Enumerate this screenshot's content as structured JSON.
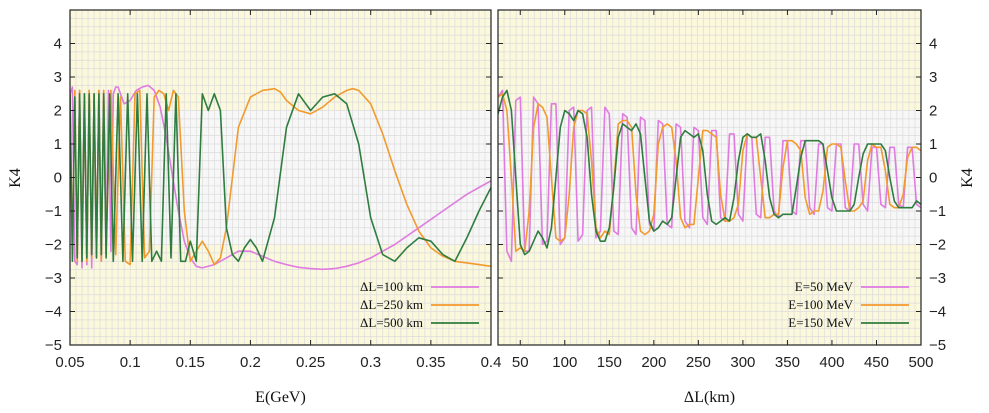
{
  "chart_data": [
    {
      "type": "line",
      "xlabel": "E(GeV)",
      "ylabel": "K4",
      "xlim": [
        0.05,
        0.4
      ],
      "ylim": [
        -5,
        5
      ],
      "xticks": [
        "0.05",
        "0.1",
        "0.15",
        "0.2",
        "0.25",
        "0.3",
        "0.35",
        "0.4"
      ],
      "yticks": [
        "−5",
        "−4",
        "−3",
        "−2",
        "−1",
        "0",
        "1",
        "2",
        "3",
        "4"
      ],
      "grid": true,
      "background_band": [
        -2,
        2
      ],
      "legend_position": "bottom-right",
      "series": [
        {
          "name": "ΔL=100 km",
          "color": "#e07be0",
          "x": [
            0.05,
            0.052,
            0.054,
            0.056,
            0.058,
            0.06,
            0.062,
            0.064,
            0.066,
            0.068,
            0.07,
            0.072,
            0.074,
            0.076,
            0.078,
            0.08,
            0.082,
            0.084,
            0.086,
            0.088,
            0.09,
            0.095,
            0.1,
            0.105,
            0.11,
            0.115,
            0.12,
            0.125,
            0.13,
            0.135,
            0.14,
            0.145,
            0.15,
            0.155,
            0.16,
            0.17,
            0.18,
            0.19,
            0.2,
            0.21,
            0.22,
            0.23,
            0.24,
            0.25,
            0.26,
            0.27,
            0.28,
            0.29,
            0.3,
            0.31,
            0.32,
            0.33,
            0.34,
            0.35,
            0.36,
            0.37,
            0.38,
            0.39,
            0.4
          ],
          "y": [
            2.5,
            2.7,
            -2.5,
            -2.6,
            2.6,
            -2.7,
            2.5,
            -2.6,
            2.4,
            -2.7,
            2.5,
            -2.4,
            2.6,
            -2.5,
            2.6,
            -2.3,
            2.6,
            -2.2,
            2.5,
            2.7,
            2.7,
            2.2,
            2.3,
            2.6,
            2.7,
            2.75,
            2.6,
            2.1,
            1.2,
            0.1,
            -1.0,
            -1.9,
            -2.4,
            -2.65,
            -2.7,
            -2.6,
            -2.4,
            -2.2,
            -2.2,
            -2.35,
            -2.5,
            -2.6,
            -2.68,
            -2.72,
            -2.74,
            -2.72,
            -2.65,
            -2.55,
            -2.4,
            -2.2,
            -2.0,
            -1.75,
            -1.5,
            -1.25,
            -1.0,
            -0.75,
            -0.5,
            -0.3,
            -0.1
          ]
        },
        {
          "name": "ΔL=250 km",
          "color": "#f39a2e",
          "x": [
            0.05,
            0.052,
            0.054,
            0.056,
            0.058,
            0.06,
            0.062,
            0.064,
            0.066,
            0.068,
            0.07,
            0.072,
            0.074,
            0.076,
            0.078,
            0.08,
            0.084,
            0.088,
            0.092,
            0.096,
            0.1,
            0.104,
            0.108,
            0.112,
            0.116,
            0.12,
            0.124,
            0.128,
            0.132,
            0.136,
            0.14,
            0.145,
            0.15,
            0.155,
            0.16,
            0.165,
            0.17,
            0.175,
            0.18,
            0.185,
            0.19,
            0.2,
            0.21,
            0.22,
            0.225,
            0.23,
            0.24,
            0.25,
            0.26,
            0.27,
            0.28,
            0.285,
            0.29,
            0.3,
            0.31,
            0.32,
            0.33,
            0.34,
            0.35,
            0.36,
            0.37,
            0.38,
            0.39,
            0.4
          ],
          "y": [
            2.5,
            -2.4,
            2.6,
            -2.5,
            2.6,
            -2.3,
            2.4,
            -2.5,
            2.6,
            -2.4,
            2.5,
            -2.3,
            2.6,
            -2.5,
            2.6,
            -2.0,
            2.6,
            -2.3,
            2.4,
            -2.5,
            -2.6,
            2.5,
            2.6,
            -2.4,
            -2.2,
            2.4,
            2.6,
            2.5,
            2.0,
            2.6,
            2.4,
            -1.0,
            -2.5,
            -2.2,
            -1.9,
            -2.2,
            -2.6,
            -2.4,
            -1.5,
            0.0,
            1.5,
            2.4,
            2.6,
            2.65,
            2.55,
            2.3,
            2.0,
            1.9,
            2.1,
            2.4,
            2.6,
            2.65,
            2.6,
            2.2,
            1.3,
            0.2,
            -0.8,
            -1.6,
            -2.1,
            -2.35,
            -2.5,
            -2.55,
            -2.6,
            -2.65
          ]
        },
        {
          "name": "ΔL=500 km",
          "color": "#2e7d3f",
          "x": [
            0.05,
            0.052,
            0.054,
            0.056,
            0.058,
            0.06,
            0.062,
            0.064,
            0.066,
            0.068,
            0.07,
            0.072,
            0.074,
            0.076,
            0.078,
            0.08,
            0.083,
            0.086,
            0.09,
            0.094,
            0.098,
            0.102,
            0.106,
            0.11,
            0.114,
            0.118,
            0.122,
            0.126,
            0.13,
            0.134,
            0.138,
            0.142,
            0.146,
            0.15,
            0.155,
            0.16,
            0.165,
            0.17,
            0.175,
            0.18,
            0.185,
            0.19,
            0.195,
            0.2,
            0.205,
            0.21,
            0.22,
            0.23,
            0.24,
            0.25,
            0.26,
            0.27,
            0.28,
            0.29,
            0.3,
            0.31,
            0.32,
            0.33,
            0.34,
            0.35,
            0.36,
            0.37,
            0.38,
            0.39,
            0.4
          ],
          "y": [
            2.5,
            -2.5,
            2.4,
            -2.4,
            2.5,
            -2.5,
            2.5,
            -2.4,
            2.5,
            -2.3,
            2.5,
            -2.4,
            2.5,
            -2.3,
            2.5,
            -2.4,
            2.5,
            -2.5,
            2.5,
            -2.5,
            2.5,
            -2.5,
            2.5,
            -2.5,
            2.5,
            -2.5,
            -2.2,
            -2.5,
            2.5,
            -2.4,
            2.5,
            -2.5,
            -2.5,
            -1.9,
            -2.5,
            2.5,
            2.0,
            2.5,
            2.0,
            -1.5,
            -2.3,
            -2.5,
            -2.1,
            -1.85,
            -2.1,
            -2.5,
            -1.2,
            1.5,
            2.5,
            2.0,
            2.4,
            2.5,
            2.2,
            1.0,
            -1.2,
            -2.3,
            -2.5,
            -2.1,
            -1.8,
            -1.9,
            -2.3,
            -2.5,
            -1.8,
            -1.0,
            -0.3
          ]
        }
      ]
    },
    {
      "type": "line",
      "xlabel": "ΔL(km)",
      "ylabel": "K4",
      "xlim": [
        25,
        500
      ],
      "ylim": [
        -5,
        5
      ],
      "xticks": [
        "50",
        "100",
        "150",
        "200",
        "250",
        "300",
        "350",
        "400",
        "450",
        "500"
      ],
      "yticks": [
        "−5",
        "−4",
        "−3",
        "−2",
        "−1",
        "0",
        "1",
        "2",
        "3",
        "4"
      ],
      "grid": true,
      "background_band": [
        -2,
        2
      ],
      "legend_position": "bottom-right",
      "series": [
        {
          "name": "E=50 MeV",
          "color": "#e07be0",
          "x": [
            25,
            30,
            35,
            40,
            45,
            50,
            55,
            60,
            65,
            70,
            75,
            80,
            85,
            90,
            95,
            100,
            105,
            110,
            115,
            120,
            125,
            130,
            135,
            140,
            145,
            150,
            155,
            160,
            165,
            170,
            175,
            180,
            185,
            190,
            195,
            200,
            205,
            210,
            215,
            220,
            225,
            230,
            235,
            240,
            245,
            250,
            255,
            260,
            265,
            270,
            275,
            280,
            285,
            290,
            295,
            300,
            305,
            310,
            315,
            320,
            325,
            330,
            335,
            340,
            345,
            350,
            355,
            360,
            365,
            370,
            375,
            380,
            385,
            390,
            395,
            400,
            405,
            410,
            415,
            420,
            425,
            430,
            435,
            440,
            445,
            450,
            455,
            460,
            465,
            470,
            475,
            480,
            485,
            490,
            495,
            500
          ],
          "y": [
            2.4,
            2.6,
            -2.2,
            -2.5,
            2.3,
            2.4,
            -2.2,
            -2.2,
            2.4,
            2.2,
            -2.0,
            -1.9,
            2.2,
            2.2,
            -2.0,
            -1.8,
            2.0,
            2.1,
            -1.9,
            -1.7,
            2.0,
            2.1,
            -1.8,
            -1.6,
            2.1,
            1.9,
            -1.6,
            -1.7,
            1.9,
            1.8,
            -1.5,
            -1.7,
            1.8,
            1.7,
            -1.4,
            -1.6,
            1.7,
            1.6,
            -1.4,
            -1.5,
            1.6,
            1.5,
            -1.3,
            -1.5,
            1.5,
            1.4,
            -1.2,
            -1.4,
            1.4,
            1.4,
            -1.2,
            -1.3,
            1.3,
            1.3,
            -1.1,
            -1.3,
            1.3,
            1.2,
            -1.1,
            -1.2,
            1.2,
            1.2,
            -1.0,
            -1.2,
            1.1,
            1.1,
            -1.0,
            -1.1,
            1.1,
            1.1,
            -0.9,
            -1.1,
            1.0,
            1.0,
            -0.9,
            -1.0,
            1.0,
            1.0,
            -0.9,
            -1.0,
            1.0,
            1.0,
            -0.8,
            -1.0,
            0.9,
            0.9,
            -0.8,
            -0.9,
            0.9,
            0.9,
            -0.8,
            -0.9,
            0.9,
            0.9,
            -0.8,
            -0.9
          ]
        },
        {
          "name": "E=100 MeV",
          "color": "#f39a2e",
          "x": [
            25,
            30,
            35,
            40,
            45,
            50,
            55,
            60,
            65,
            70,
            75,
            80,
            85,
            90,
            95,
            100,
            105,
            110,
            115,
            120,
            125,
            130,
            135,
            140,
            145,
            150,
            155,
            160,
            165,
            170,
            175,
            180,
            185,
            190,
            195,
            200,
            205,
            210,
            215,
            220,
            225,
            230,
            235,
            240,
            245,
            250,
            255,
            260,
            265,
            270,
            275,
            280,
            285,
            290,
            295,
            300,
            305,
            310,
            315,
            320,
            325,
            330,
            335,
            340,
            345,
            350,
            355,
            360,
            365,
            370,
            375,
            380,
            385,
            390,
            395,
            400,
            405,
            410,
            415,
            420,
            425,
            430,
            435,
            440,
            445,
            450,
            455,
            460,
            465,
            470,
            475,
            480,
            485,
            490,
            495,
            500
          ],
          "y": [
            2.4,
            2.5,
            2.0,
            0.0,
            -2.2,
            -2.1,
            -2.2,
            -1.0,
            1.5,
            2.2,
            2.1,
            1.8,
            0.0,
            -1.8,
            -1.9,
            -1.8,
            -0.5,
            1.5,
            2.0,
            2.0,
            1.9,
            0.5,
            -1.5,
            -1.8,
            -1.6,
            -1.7,
            -0.2,
            1.6,
            1.7,
            1.7,
            1.5,
            -0.5,
            -1.6,
            -1.7,
            -1.6,
            -1.1,
            1.0,
            1.5,
            1.6,
            1.5,
            0.5,
            -1.2,
            -1.5,
            -1.4,
            -1.4,
            0.0,
            1.4,
            1.4,
            1.3,
            1.2,
            -0.5,
            -1.3,
            -1.3,
            -1.2,
            -0.8,
            0.8,
            1.3,
            1.2,
            1.2,
            0.0,
            -1.2,
            -1.2,
            -1.1,
            -1.1,
            0.3,
            1.1,
            1.1,
            1.0,
            0.8,
            -0.6,
            -1.1,
            -1.0,
            -1.0,
            -0.4,
            0.9,
            1.0,
            1.0,
            0.9,
            -0.1,
            -1.0,
            -1.0,
            -0.9,
            -0.7,
            0.5,
            1.0,
            0.9,
            0.9,
            0.2,
            -0.8,
            -0.9,
            -0.9,
            -0.5,
            0.6,
            0.9,
            0.9,
            0.8
          ]
        },
        {
          "name": "E=150 MeV",
          "color": "#2e7d3f",
          "x": [
            25,
            30,
            35,
            40,
            45,
            50,
            55,
            60,
            65,
            70,
            75,
            80,
            85,
            90,
            95,
            100,
            105,
            110,
            115,
            120,
            125,
            130,
            135,
            140,
            145,
            150,
            155,
            160,
            165,
            170,
            175,
            180,
            185,
            190,
            195,
            200,
            205,
            210,
            215,
            220,
            225,
            230,
            235,
            240,
            245,
            250,
            255,
            260,
            265,
            270,
            275,
            280,
            285,
            290,
            295,
            300,
            305,
            310,
            315,
            320,
            325,
            330,
            335,
            340,
            345,
            350,
            355,
            360,
            365,
            370,
            375,
            380,
            385,
            390,
            395,
            400,
            405,
            410,
            415,
            420,
            425,
            430,
            435,
            440,
            445,
            450,
            455,
            460,
            465,
            470,
            475,
            480,
            485,
            490,
            495,
            500
          ],
          "y": [
            1.9,
            2.4,
            2.6,
            2.0,
            0.0,
            -2.0,
            -2.3,
            -2.2,
            -1.9,
            -1.6,
            -1.8,
            -2.1,
            -1.5,
            0.0,
            1.5,
            2.0,
            1.9,
            1.7,
            2.0,
            1.9,
            1.2,
            -0.5,
            -1.6,
            -1.9,
            -1.9,
            -1.5,
            -0.3,
            1.2,
            1.6,
            1.5,
            1.4,
            1.6,
            1.3,
            0.0,
            -1.3,
            -1.6,
            -1.5,
            -1.3,
            -1.4,
            -1.2,
            0.0,
            1.2,
            1.4,
            1.3,
            1.2,
            1.3,
            0.8,
            -0.5,
            -1.3,
            -1.4,
            -1.3,
            -1.2,
            -1.3,
            -0.6,
            0.5,
            1.2,
            1.3,
            1.2,
            1.2,
            1.3,
            0.5,
            -0.6,
            -1.1,
            -1.2,
            -1.1,
            -1.1,
            -1.1,
            -0.3,
            0.6,
            1.1,
            1.1,
            1.1,
            1.1,
            1.0,
            0.2,
            -0.6,
            -1.0,
            -1.0,
            -1.0,
            -1.0,
            -0.8,
            0.0,
            0.7,
            1.0,
            1.0,
            1.0,
            1.0,
            0.8,
            0.0,
            -0.7,
            -0.9,
            -0.9,
            -0.9,
            -0.9,
            -0.7,
            -0.8
          ]
        }
      ]
    }
  ]
}
